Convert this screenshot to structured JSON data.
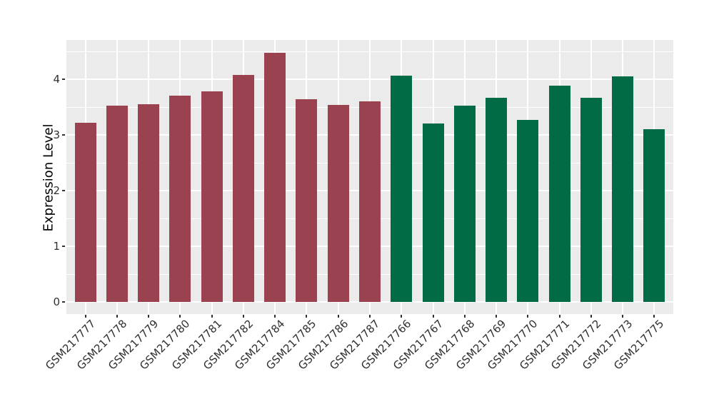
{
  "chart_data": {
    "type": "bar",
    "ylabel": "Expression Level",
    "yticks": [
      0,
      1,
      2,
      3,
      4
    ],
    "ylim": [
      -0.22,
      4.71
    ],
    "grid": {
      "horizontal_major": true,
      "horizontal_minor": true,
      "vertical_major": true
    },
    "legend": "none",
    "panel_bg": "#ebebeb",
    "grid_color": "#ffffff",
    "axis_text_color": "#303030",
    "categories": [
      "GSM217777",
      "GSM217778",
      "GSM217779",
      "GSM217780",
      "GSM217781",
      "GSM217782",
      "GSM217784",
      "GSM217785",
      "GSM217786",
      "GSM217787",
      "GSM217766",
      "GSM217767",
      "GSM217768",
      "GSM217769",
      "GSM217770",
      "GSM217771",
      "GSM217772",
      "GSM217773",
      "GSM217775"
    ],
    "values": [
      3.22,
      3.53,
      3.55,
      3.7,
      3.78,
      4.08,
      4.47,
      3.64,
      3.54,
      3.6,
      4.06,
      3.21,
      3.53,
      3.67,
      3.27,
      3.89,
      3.67,
      4.05,
      3.1
    ],
    "groups": [
      "group1",
      "group1",
      "group1",
      "group1",
      "group1",
      "group1",
      "group1",
      "group1",
      "group1",
      "group1",
      "group2",
      "group2",
      "group2",
      "group2",
      "group2",
      "group2",
      "group2",
      "group2",
      "group2"
    ],
    "group_colors": {
      "group1": "#9a4250",
      "group2": "#006b45"
    }
  }
}
